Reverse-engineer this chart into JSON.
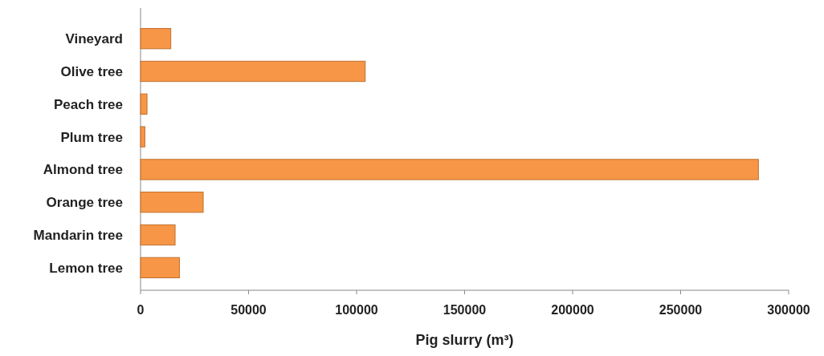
{
  "chart_data": {
    "type": "bar",
    "orientation": "horizontal",
    "xlabel": "Pig slurry (m³)",
    "categories": [
      "Vineyard",
      "Olive tree",
      "Peach tree",
      "Plum tree",
      "Almond tree",
      "Orange tree",
      "Mandarin tree",
      "Lemon tree"
    ],
    "values": [
      14000,
      104000,
      3000,
      2000,
      286000,
      29000,
      16000,
      18000
    ],
    "color": "#f79646",
    "xlim": [
      0,
      300000
    ],
    "xticks": [
      0,
      50000,
      100000,
      150000,
      200000,
      250000,
      300000
    ],
    "grid": false
  }
}
